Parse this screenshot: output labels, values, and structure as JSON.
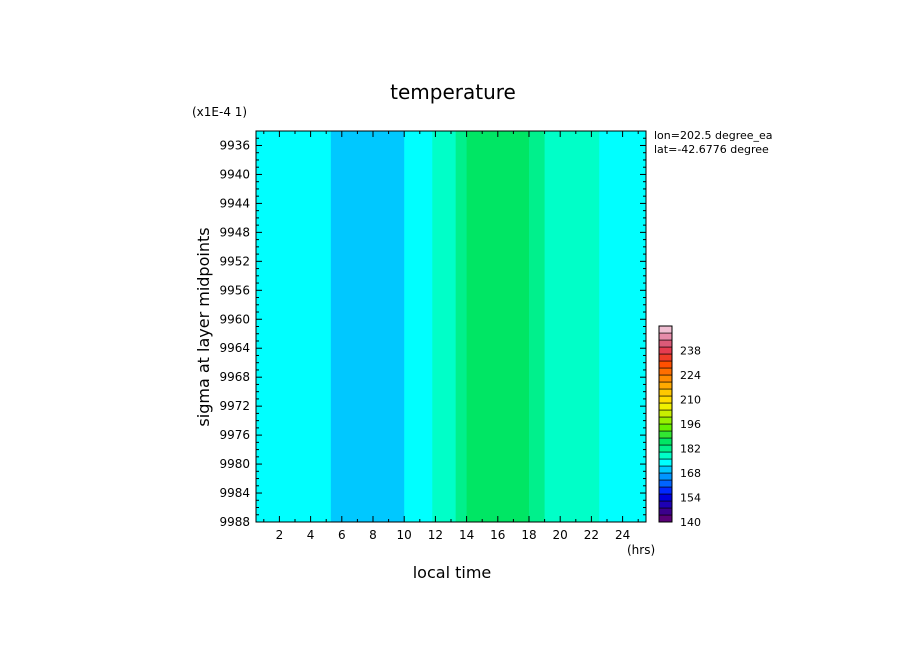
{
  "chart_data": {
    "type": "heatmap",
    "title": "temperature",
    "xlabel": "local time",
    "ylabel": "sigma at layer midpoints",
    "x_unit": "(hrs)",
    "y_scale_note": "(x1E-4 1)",
    "annotations": [
      "lon=202.5 degree_ea",
      "lat=-42.6776 degree"
    ],
    "x_ticks": [
      2,
      4,
      6,
      8,
      10,
      12,
      14,
      16,
      18,
      20,
      22,
      24
    ],
    "y_ticks": [
      9936,
      9940,
      9944,
      9948,
      9952,
      9956,
      9960,
      9964,
      9968,
      9972,
      9976,
      9980,
      9984,
      9988
    ],
    "xlim": [
      0.5,
      25.5
    ],
    "ylim": [
      9988,
      9934
    ],
    "bands": [
      {
        "x0": 0.5,
        "x1": 1.5,
        "value": 174
      },
      {
        "x0": 1.5,
        "x1": 5.3,
        "value": 172
      },
      {
        "x0": 5.3,
        "x1": 10.0,
        "value": 170
      },
      {
        "x0": 10.0,
        "x1": 11.8,
        "value": 175
      },
      {
        "x0": 11.8,
        "x1": 13.3,
        "value": 178
      },
      {
        "x0": 13.3,
        "x1": 14.0,
        "value": 181
      },
      {
        "x0": 14.0,
        "x1": 18.0,
        "value": 184
      },
      {
        "x0": 18.0,
        "x1": 19.0,
        "value": 181
      },
      {
        "x0": 19.0,
        "x1": 22.5,
        "value": 178
      },
      {
        "x0": 22.5,
        "x1": 25.5,
        "value": 175
      }
    ],
    "colorbar": {
      "ticks": [
        140,
        154,
        168,
        182,
        196,
        210,
        224,
        238
      ],
      "range": [
        140,
        252
      ],
      "levels": [
        {
          "from": 140,
          "to": 144,
          "color": "#5a0078"
        },
        {
          "from": 144,
          "to": 148,
          "color": "#3c008c"
        },
        {
          "from": 148,
          "to": 152,
          "color": "#1e00b4"
        },
        {
          "from": 152,
          "to": 156,
          "color": "#0000dc"
        },
        {
          "from": 156,
          "to": 160,
          "color": "#0028ff"
        },
        {
          "from": 160,
          "to": 164,
          "color": "#0064ff"
        },
        {
          "from": 164,
          "to": 168,
          "color": "#0096ff"
        },
        {
          "from": 168,
          "to": 172,
          "color": "#00c8ff"
        },
        {
          "from": 172,
          "to": 176,
          "color": "#00ffff"
        },
        {
          "from": 176,
          "to": 180,
          "color": "#00ffc8"
        },
        {
          "from": 180,
          "to": 184,
          "color": "#00f08c"
        },
        {
          "from": 184,
          "to": 188,
          "color": "#00e664"
        },
        {
          "from": 188,
          "to": 192,
          "color": "#32e632"
        },
        {
          "from": 192,
          "to": 196,
          "color": "#64f000"
        },
        {
          "from": 196,
          "to": 200,
          "color": "#96f000"
        },
        {
          "from": 200,
          "to": 204,
          "color": "#c8f000"
        },
        {
          "from": 204,
          "to": 208,
          "color": "#f0f000"
        },
        {
          "from": 208,
          "to": 212,
          "color": "#ffdc00"
        },
        {
          "from": 212,
          "to": 216,
          "color": "#ffc800"
        },
        {
          "from": 216,
          "to": 220,
          "color": "#ffaa00"
        },
        {
          "from": 220,
          "to": 224,
          "color": "#ff8c00"
        },
        {
          "from": 224,
          "to": 228,
          "color": "#ff6e00"
        },
        {
          "from": 228,
          "to": 232,
          "color": "#ff5000"
        },
        {
          "from": 232,
          "to": 236,
          "color": "#f03c28"
        },
        {
          "from": 236,
          "to": 240,
          "color": "#e63c50"
        },
        {
          "from": 240,
          "to": 244,
          "color": "#dc5a78"
        },
        {
          "from": 244,
          "to": 248,
          "color": "#e68caa"
        },
        {
          "from": 248,
          "to": 252,
          "color": "#f0bed2"
        }
      ]
    }
  }
}
